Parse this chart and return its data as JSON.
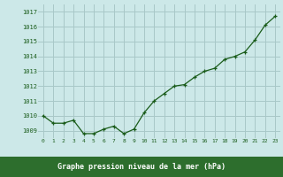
{
  "x": [
    0,
    1,
    2,
    3,
    4,
    5,
    6,
    7,
    8,
    9,
    10,
    11,
    12,
    13,
    14,
    15,
    16,
    17,
    18,
    19,
    20,
    21,
    22,
    23
  ],
  "y": [
    1010.0,
    1009.5,
    1009.5,
    1009.7,
    1008.8,
    1008.8,
    1009.1,
    1009.3,
    1008.8,
    1009.1,
    1010.2,
    1011.0,
    1011.5,
    1012.0,
    1012.1,
    1012.6,
    1013.0,
    1013.2,
    1013.8,
    1014.0,
    1014.3,
    1015.1,
    1016.1,
    1016.7
  ],
  "xlim": [
    -0.5,
    23.5
  ],
  "ylim": [
    1008.5,
    1017.5
  ],
  "yticks": [
    1009,
    1010,
    1011,
    1012,
    1013,
    1014,
    1015,
    1016,
    1017
  ],
  "xticks": [
    0,
    1,
    2,
    3,
    4,
    5,
    6,
    7,
    8,
    9,
    10,
    11,
    12,
    13,
    14,
    15,
    16,
    17,
    18,
    19,
    20,
    21,
    22,
    23
  ],
  "line_color": "#1a5c1a",
  "marker": "+",
  "marker_color": "#1a5c1a",
  "bg_color": "#cce8e8",
  "grid_color": "#a8c8c8",
  "tick_color": "#1a5c1a",
  "xlabel": "Graphe pression niveau de la mer (hPa)",
  "xlabel_color": "#ffffff",
  "xlabel_bg": "#2d6e2d",
  "bottom_bar_color": "#2d6e2d"
}
